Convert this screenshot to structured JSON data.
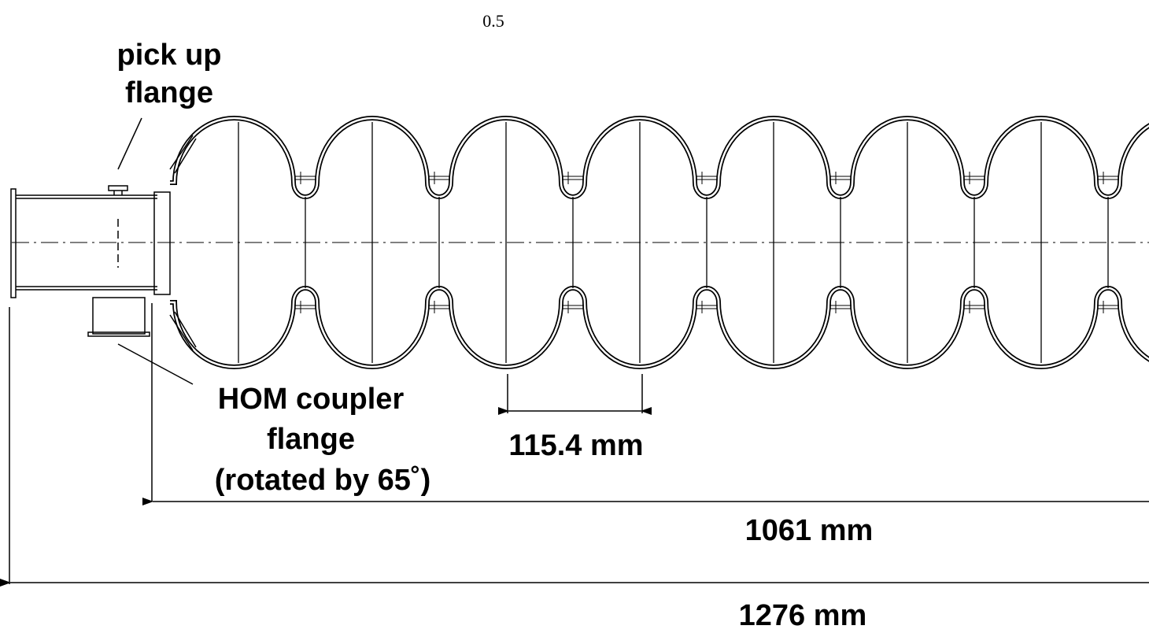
{
  "scale_label": "0.5",
  "labels": {
    "pickup": [
      "pick up",
      "flange"
    ],
    "hom": [
      "HOM coupler",
      "flange",
      "(rotated by 65˚)"
    ]
  },
  "dimensions": [
    "115.4 mm",
    "1061 mm",
    "1276 mm"
  ]
}
